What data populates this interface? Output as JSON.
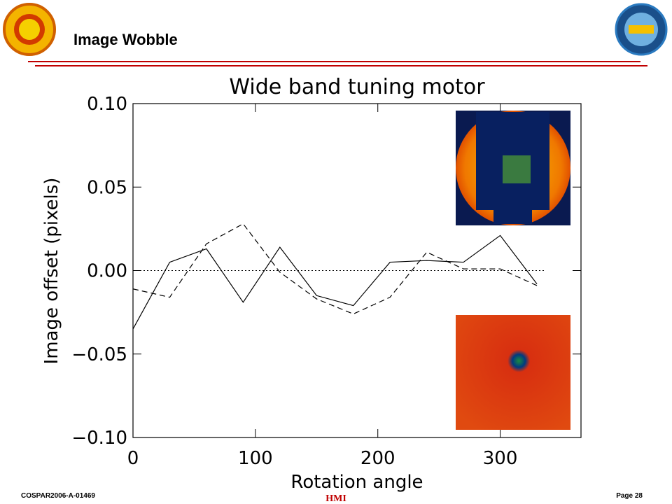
{
  "header": {
    "title": "Image Wobble"
  },
  "chart_data": {
    "type": "line",
    "title": "Wide band tuning motor",
    "x_label": "Rotation angle",
    "y_label": "Image offset (pixels)",
    "x": [
      0,
      30,
      60,
      90,
      120,
      150,
      180,
      210,
      240,
      270,
      300,
      330
    ],
    "series": [
      {
        "color": "#000000",
        "line_style": "solid",
        "values": [
          -0.035,
          0.005,
          0.013,
          -0.019,
          0.014,
          -0.015,
          -0.021,
          0.005,
          0.006,
          0.005,
          0.021,
          -0.008
        ]
      },
      {
        "color": "#000000",
        "line_style": "dashed",
        "values": [
          -0.011,
          -0.016,
          0.016,
          0.028,
          -0.001,
          -0.017,
          -0.026,
          -0.016,
          0.011,
          0.001,
          0.001,
          -0.009
        ]
      }
    ],
    "zero_line": {
      "y": 0,
      "x": [
        0,
        337
      ],
      "line_style": "dotted"
    },
    "xlim": [
      0,
      366
    ],
    "xticks": [
      0,
      100,
      200,
      300
    ],
    "ylim": [
      -0.1,
      0.1
    ],
    "yticks": [
      {
        "value": -0.1,
        "label": "−0.10"
      },
      {
        "value": -0.05,
        "label": "−0.05"
      },
      {
        "value": 0,
        "label": "0.00"
      },
      {
        "value": 0.05,
        "label": "0.05"
      },
      {
        "value": 0.1,
        "label": "0.10"
      }
    ]
  },
  "footer": {
    "left": "COSPAR2006-A-01469",
    "right": "Page 28",
    "center": "HMI"
  }
}
